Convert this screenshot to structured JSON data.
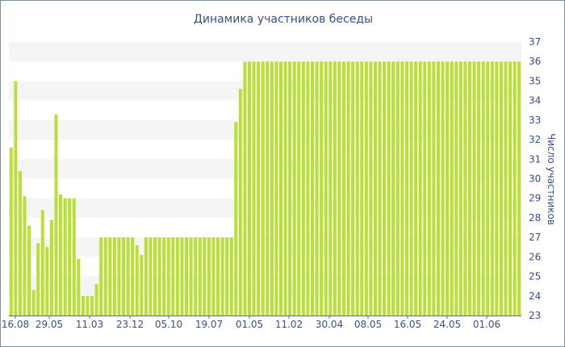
{
  "chart_data": {
    "type": "bar",
    "title": "Динамика участников беседы",
    "xlabel": "",
    "ylabel": "Число участников",
    "ylim": [
      23,
      37
    ],
    "grid": "horizontal bands",
    "y_axis_side": "right",
    "bar_color": "#b8e036",
    "band_color": "#f5f5f5",
    "x_tick_labels": [
      "16.08",
      "29.05",
      "11.03",
      "23.12",
      "05.10",
      "19.07",
      "01.05",
      "11.02",
      "30.04",
      "08.05",
      "16.05",
      "24.05",
      "01.06"
    ],
    "y_tick_labels": [
      "23",
      "24",
      "25",
      "26",
      "27",
      "28",
      "29",
      "30",
      "31",
      "32",
      "33",
      "34",
      "35",
      "36",
      "37"
    ],
    "values": [
      31.6,
      35,
      30.4,
      29.1,
      27.6,
      24.3,
      26.7,
      28.4,
      26.5,
      27.9,
      33.3,
      29.2,
      29,
      29,
      29,
      25.9,
      24,
      24,
      24,
      24.6,
      27,
      27,
      27,
      27,
      27,
      27,
      27,
      27,
      26.6,
      26.1,
      27,
      27,
      27,
      27,
      27,
      27,
      27,
      27,
      27,
      27,
      27,
      27,
      27,
      27,
      27,
      27,
      27,
      27,
      27,
      27,
      32.9,
      34.6,
      36,
      36,
      36,
      36,
      36,
      36,
      36,
      36,
      36,
      36,
      36,
      36,
      36,
      36,
      36,
      36,
      36,
      36,
      36,
      36,
      36,
      36,
      36,
      36,
      36,
      36,
      36,
      36,
      36,
      36,
      36,
      36,
      36,
      36,
      36,
      36,
      36,
      36,
      36,
      36,
      36,
      36,
      36,
      36,
      36,
      36,
      36,
      36,
      36,
      36,
      36,
      36,
      36,
      36,
      36,
      36,
      36,
      36,
      36,
      36,
      36,
      36
    ]
  }
}
